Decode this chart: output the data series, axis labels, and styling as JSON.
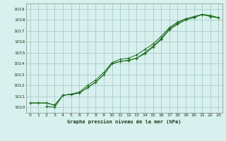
{
  "title": "Graphe pression niveau de la mer (hPa)",
  "bg_color": "#d8f0ee",
  "grid_color": "#aacccc",
  "line_color": "#1a6b1a",
  "marker_color": "#1a6b1a",
  "xlim": [
    -0.5,
    23.5
  ],
  "ylim": [
    1009.5,
    1019.5
  ],
  "yticks": [
    1010,
    1011,
    1012,
    1013,
    1014,
    1015,
    1016,
    1017,
    1018,
    1019
  ],
  "xticks": [
    0,
    1,
    2,
    3,
    4,
    5,
    6,
    7,
    8,
    9,
    10,
    11,
    12,
    13,
    14,
    15,
    16,
    17,
    18,
    19,
    20,
    21,
    22,
    23
  ],
  "series1_x": [
    0,
    1,
    2,
    3,
    4,
    5,
    6,
    7,
    8,
    9,
    10,
    11,
    12,
    13,
    14,
    15,
    16,
    17,
    18,
    19,
    20,
    21,
    22,
    23
  ],
  "series1_y": [
    1010.4,
    1010.4,
    1010.4,
    1010.2,
    1011.1,
    1011.2,
    1011.3,
    1011.8,
    1012.3,
    1013.0,
    1014.0,
    1014.2,
    1014.3,
    1014.5,
    1014.9,
    1015.5,
    1016.2,
    1017.1,
    1017.6,
    1018.0,
    1018.2,
    1018.5,
    1018.4,
    1018.2
  ],
  "series2_x": [
    0,
    1,
    2,
    3,
    4,
    5,
    6,
    7,
    8,
    9,
    10,
    11,
    12,
    13,
    14,
    15,
    16,
    17,
    18,
    19,
    20,
    21,
    22,
    23
  ],
  "series2_y": [
    1010.4,
    1010.4,
    1010.4,
    1010.2,
    1011.1,
    1011.2,
    1011.3,
    1011.8,
    1012.3,
    1013.0,
    1014.0,
    1014.2,
    1014.3,
    1014.5,
    1015.0,
    1015.6,
    1016.3,
    1017.2,
    1017.7,
    1018.1,
    1018.3,
    1018.5,
    1018.4,
    1018.2
  ],
  "series3_x": [
    2,
    3,
    4,
    5,
    6,
    7,
    8,
    9,
    10,
    11,
    12,
    13,
    14,
    15,
    16,
    17,
    18,
    19,
    20,
    21,
    22,
    23
  ],
  "series3_y": [
    1010.1,
    1010.0,
    1011.1,
    1011.2,
    1011.4,
    1012.0,
    1012.5,
    1013.2,
    1014.1,
    1014.4,
    1014.5,
    1014.8,
    1015.3,
    1015.8,
    1016.5,
    1017.3,
    1017.8,
    1018.1,
    1018.3,
    1018.5,
    1018.3,
    1018.2
  ]
}
